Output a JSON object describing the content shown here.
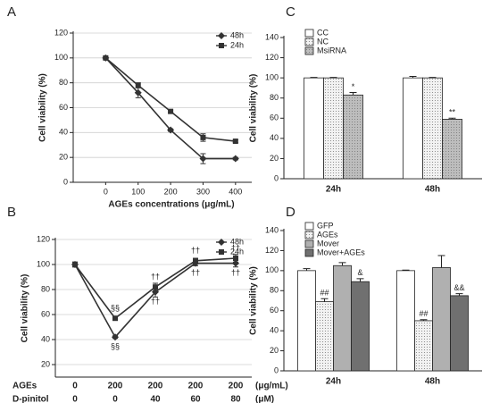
{
  "chart_data": [
    {
      "type": "line",
      "panel": "A",
      "ylabel": "Cell viability (%)",
      "xlabel": "AGEs concentrations (μg/mL)",
      "x": [
        0,
        100,
        200,
        300,
        400
      ],
      "xlim": [
        -100,
        450
      ],
      "xticks": [
        0,
        100,
        200,
        300,
        400
      ],
      "ylim": [
        0,
        120
      ],
      "yticks": [
        0,
        20,
        40,
        60,
        80,
        100,
        120
      ],
      "grid": true,
      "legend": "upper right",
      "series": [
        {
          "name": "48h",
          "color": "#333333",
          "marker": "diamond",
          "values": [
            100,
            72,
            42,
            19,
            19
          ],
          "errors": [
            1,
            4,
            1,
            4,
            1
          ]
        },
        {
          "name": "24h",
          "color": "#333333",
          "marker": "square",
          "values": [
            100,
            78,
            57,
            36,
            33
          ],
          "errors": [
            1,
            2,
            1,
            3,
            1
          ]
        }
      ]
    },
    {
      "type": "line",
      "panel": "B",
      "ylabel": "Cell viability (%)",
      "category_rows": [
        {
          "name": "AGEs",
          "labels": [
            "0",
            "200",
            "200",
            "200",
            "200"
          ],
          "unit": "(μg/mL)"
        },
        {
          "name": "D-pinitol",
          "labels": [
            "0",
            "0",
            "40",
            "60",
            "80"
          ],
          "unit": "(μM)"
        }
      ],
      "ylim": [
        10,
        120
      ],
      "yticks": [
        20,
        40,
        60,
        80,
        100,
        120
      ],
      "grid": true,
      "legend": "upper right",
      "annotations": {
        "above": [
          null,
          "§§",
          "††",
          "††",
          "††"
        ],
        "below": [
          null,
          "§§",
          "††",
          "††",
          "††"
        ]
      },
      "series": [
        {
          "name": "48h",
          "color": "#333333",
          "marker": "diamond",
          "values": [
            100,
            42,
            78,
            101,
            101
          ],
          "errors": [
            2,
            1,
            4,
            2,
            3
          ]
        },
        {
          "name": "24h",
          "color": "#333333",
          "marker": "square",
          "values": [
            100,
            57,
            82,
            103,
            105
          ],
          "errors": [
            2,
            1,
            3,
            2,
            3
          ]
        }
      ]
    },
    {
      "type": "bar",
      "panel": "C",
      "ylabel": "Cell viability (%)",
      "categories": [
        "24h",
        "48h"
      ],
      "ylim": [
        0,
        140
      ],
      "yticks": [
        0,
        20,
        40,
        60,
        80,
        100,
        120,
        140
      ],
      "grid": false,
      "legend": "upper left",
      "series": [
        {
          "name": "CC",
          "color": "#ffffff",
          "hatch": false,
          "values": [
            100,
            100
          ],
          "errors": [
            0.5,
            1.5
          ]
        },
        {
          "name": "NC",
          "color": "#f2f2f2",
          "hatch": true,
          "values": [
            100,
            100
          ],
          "errors": [
            0.5,
            0.5
          ]
        },
        {
          "name": "MsiRNA",
          "color": "#bdbdbd",
          "hatch": true,
          "values": [
            83,
            59
          ],
          "errors": [
            2.5,
            1
          ],
          "annotations": [
            "*",
            "**"
          ]
        }
      ]
    },
    {
      "type": "bar",
      "panel": "D",
      "ylabel": "Cell viability (%)",
      "categories": [
        "24h",
        "48h"
      ],
      "ylim": [
        0,
        140
      ],
      "yticks": [
        0,
        20,
        40,
        60,
        80,
        100,
        120,
        140
      ],
      "grid": false,
      "legend": "upper left",
      "series": [
        {
          "name": "GFP",
          "color": "#ffffff",
          "hatch": false,
          "values": [
            100,
            100
          ],
          "errors": [
            2,
            0.5
          ]
        },
        {
          "name": "AGEs",
          "color": "#f2f2f2",
          "hatch": true,
          "values": [
            69,
            50
          ],
          "errors": [
            3,
            1
          ],
          "annotations": [
            "##",
            "##"
          ]
        },
        {
          "name": "Mover",
          "color": "#b0b0b0",
          "hatch": false,
          "values": [
            105,
            103
          ],
          "errors": [
            3,
            12
          ]
        },
        {
          "name": "Mover+AGEs",
          "color": "#707070",
          "hatch": false,
          "values": [
            89,
            75
          ],
          "errors": [
            3,
            2
          ],
          "annotations": [
            "&",
            "&&"
          ]
        }
      ]
    }
  ]
}
